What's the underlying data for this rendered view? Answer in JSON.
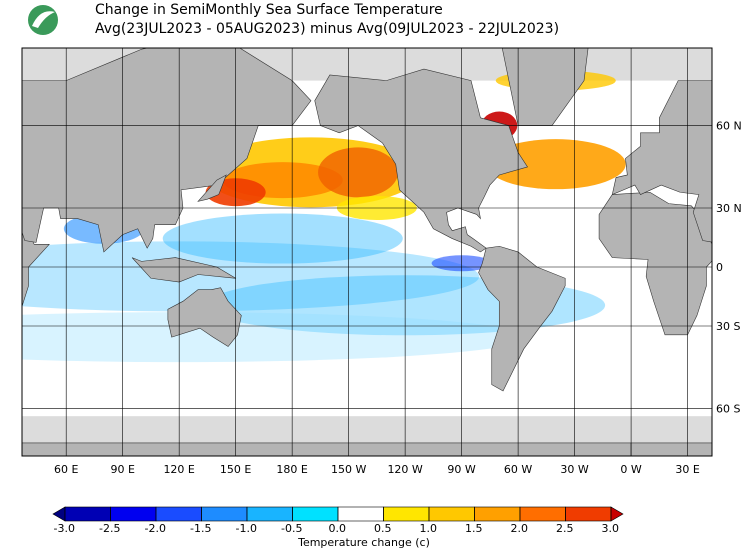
{
  "header": {
    "title_lines": [
      "Change in SemiMonthly Sea Surface Temperature",
      "Avg(23JUL2023 - 05AUG2023) minus Avg(09JUL2023 - 22JUL2023)"
    ]
  },
  "map": {
    "lon_labels": [
      "60 E",
      "90 E",
      "120 E",
      "150 E",
      "180 E",
      "150 W",
      "120 W",
      "90 W",
      "60 W",
      "30 W",
      "0 W",
      "30 E"
    ],
    "lat_labels": [
      "60 N",
      "30 N",
      "0",
      "30 S",
      "60 S"
    ]
  },
  "colorbar": {
    "label": "Temperature change  (c)",
    "ticks": [
      {
        "value": -3,
        "label": "-3.0"
      },
      {
        "value": -2.5,
        "label": "-2.5"
      },
      {
        "value": -2,
        "label": "-2.0"
      },
      {
        "value": -1.5,
        "label": "-1.5"
      },
      {
        "value": -1,
        "label": "-1.0"
      },
      {
        "value": -0.5,
        "label": "-0.5"
      },
      {
        "value": 0,
        "label": "0.0"
      },
      {
        "value": 0.5,
        "label": "0.5"
      },
      {
        "value": 1,
        "label": "1.0"
      },
      {
        "value": 1.5,
        "label": "1.5"
      },
      {
        "value": 2,
        "label": "2.0"
      },
      {
        "value": 2.5,
        "label": "2.5"
      },
      {
        "value": 3,
        "label": "3.0"
      }
    ],
    "colors": [
      "#000080",
      "#0000b4",
      "#0000f0",
      "#1a4cff",
      "#1e8cff",
      "#19b4ff",
      "#00e1ff",
      "#ffffff",
      "#ffe600",
      "#ffc800",
      "#ffa000",
      "#ff6e00",
      "#f03c00",
      "#c80000"
    ]
  }
}
